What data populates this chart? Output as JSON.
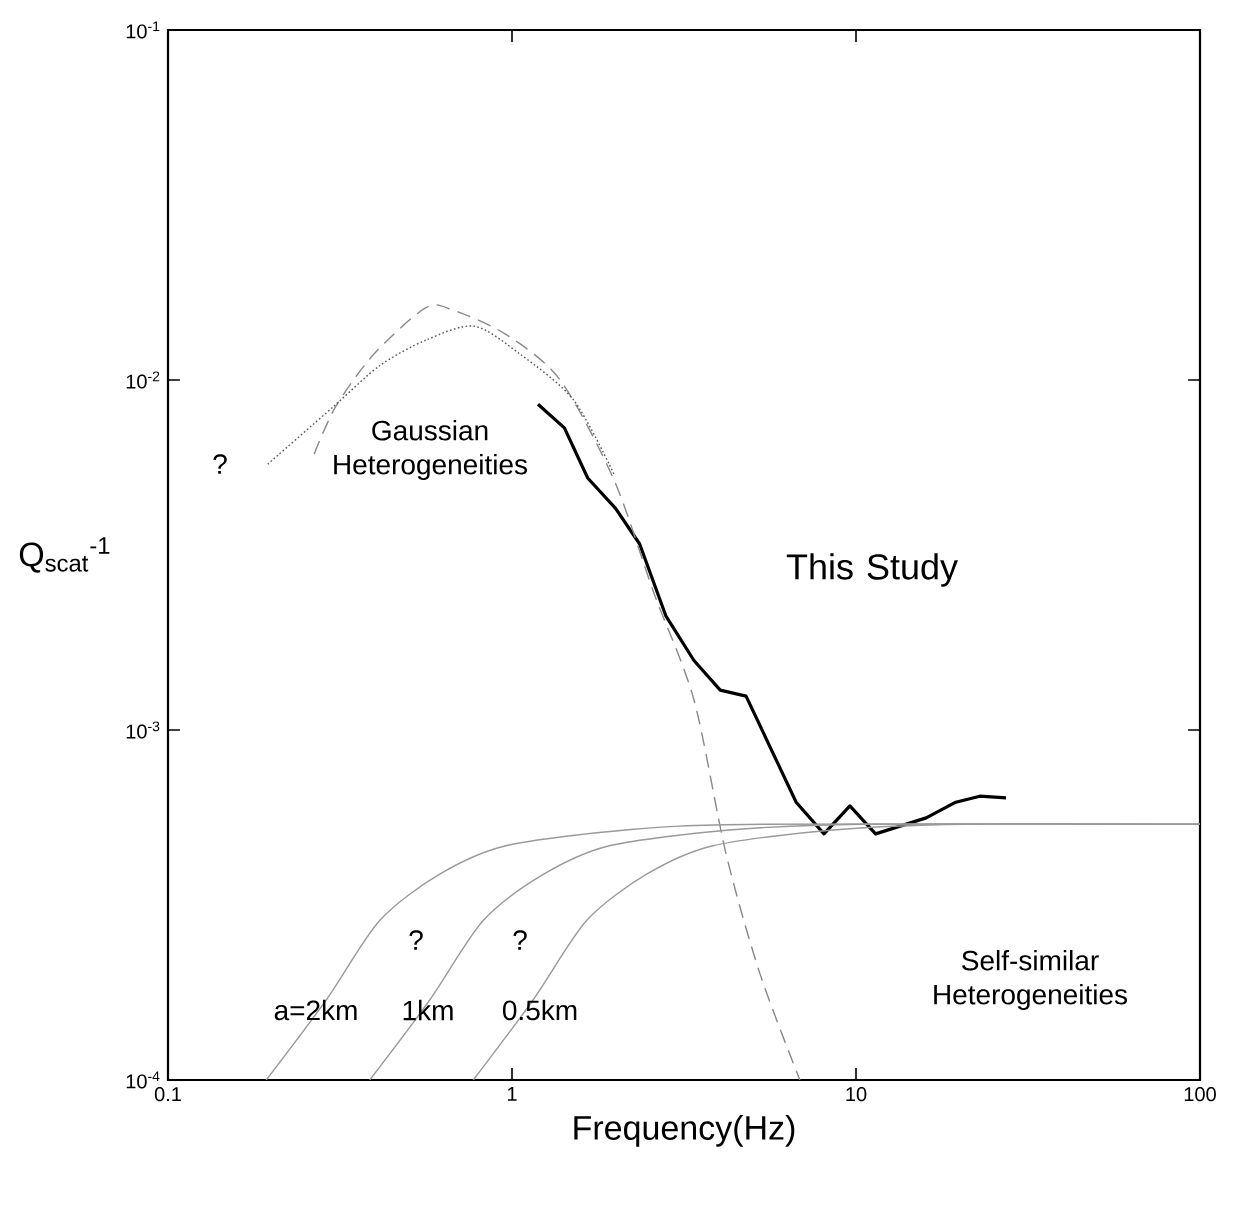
{
  "chart_data": {
    "type": "line",
    "xlabel": "Frequency(Hz)",
    "ylabel": "Q$_{scat}$$^{-1}$",
    "log": "xy",
    "grid": false,
    "marker": "none",
    "xlim": [
      0.1,
      100
    ],
    "ylim": [
      0.0001,
      0.1
    ],
    "xticks": [
      0.1,
      1,
      10,
      100
    ],
    "yticks": [
      {
        "value": 0.0001,
        "label": "10$^{-4}$"
      },
      {
        "value": 0.001,
        "label": "10$^{-3}$"
      },
      {
        "value": 0.01,
        "label": "10$^{-2}$"
      },
      {
        "value": 0.1,
        "label": "10$^{-1}$"
      }
    ],
    "series": [
      {
        "color": "#000000",
        "line_style": "solid",
        "x": [
          1.19,
          1.42,
          1.66,
          2.0,
          2.35,
          2.8,
          3.38,
          4.03,
          4.79,
          6.7,
          8.07,
          9.6,
          11.4,
          16,
          19.5,
          22.9,
          27.3
        ],
        "values": [
          0.00853,
          0.0073,
          0.00525,
          0.0043,
          0.0034,
          0.00212,
          0.00158,
          0.0013,
          0.00125,
          0.000622,
          0.000505,
          0.000607,
          0.000505,
          0.000561,
          0.000622,
          0.000647,
          0.00064
        ]
      },
      {
        "color": "#888888",
        "line_style": "dashed",
        "x": [
          0.266,
          0.308,
          0.397,
          0.562,
          0.678,
          0.96,
          1.38,
          1.98,
          2.59,
          3.38,
          4.19,
          5.26,
          6.87
        ],
        "values": [
          0.00615,
          0.00843,
          0.01186,
          0.0161,
          0.0158,
          0.0135,
          0.01,
          0.00518,
          0.00245,
          0.00122,
          0.000443,
          0.000201,
          0.0001
        ]
      },
      {
        "color": "#555555",
        "line_style": "dotted",
        "x": [
          0.195,
          0.304,
          0.413,
          0.562,
          0.776,
          1.055,
          1.51,
          1.98
        ],
        "values": [
          0.00575,
          0.00843,
          0.011,
          0.013,
          0.01425,
          0.01186,
          0.00877,
          0.00538
        ]
      },
      {
        "color": "#999999",
        "line_style": "solid",
        "x": [
          0.193,
          0.288,
          0.413,
          0.618,
          0.96,
          2.14,
          5.26,
          100
        ],
        "values": [
          0.0001,
          0.000169,
          0.000286,
          0.000388,
          0.000467,
          0.000518,
          0.000538,
          0.000538
        ]
      },
      {
        "color": "#999999",
        "line_style": "solid",
        "x": [
          0.386,
          0.576,
          0.826,
          1.24,
          1.92,
          4.28,
          10.5,
          100
        ],
        "values": [
          0.0001,
          0.000169,
          0.000286,
          0.000388,
          0.000467,
          0.000518,
          0.000538,
          0.000538
        ]
      },
      {
        "color": "#999999",
        "line_style": "solid",
        "x": [
          0.772,
          1.15,
          1.65,
          2.47,
          3.84,
          8.56,
          21,
          100
        ],
        "values": [
          0.0001,
          0.000169,
          0.000286,
          0.000388,
          0.000467,
          0.000518,
          0.000538,
          0.000538
        ]
      }
    ],
    "annotations": [
      "?",
      "Gaussian Heterogeneities",
      "This Study",
      "Self-similar Heterogeneities",
      "?",
      "?",
      "a=2km",
      "1km",
      "0.5km"
    ]
  }
}
